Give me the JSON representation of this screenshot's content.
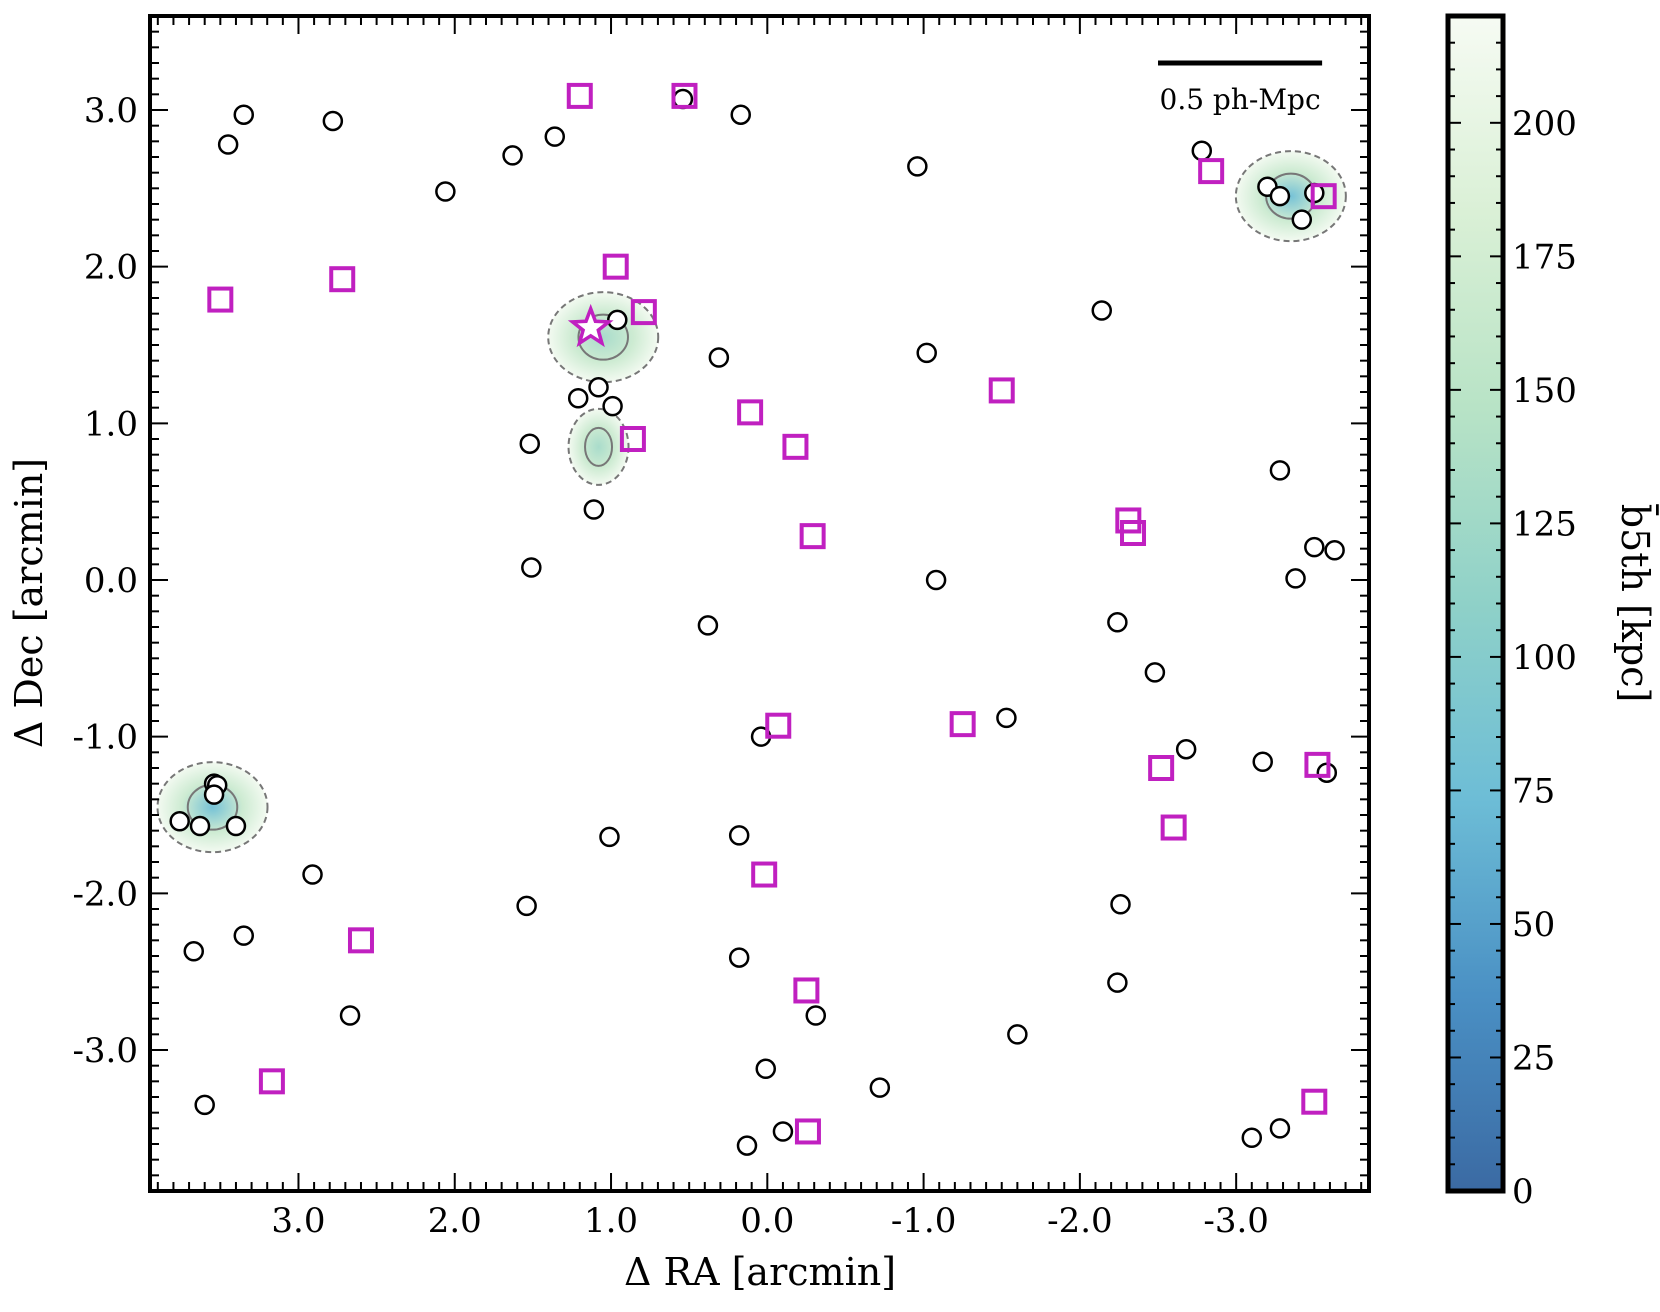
{
  "chart_data": {
    "type": "scatter",
    "xlabel": "Δ RA [arcmin]",
    "ylabel": "Δ Dec [arcmin]",
    "xlim": [
      3.95,
      -3.85
    ],
    "ylim": [
      -3.9,
      3.6
    ],
    "x_ticks": [
      {
        "value": 3.0,
        "label": "3.0"
      },
      {
        "value": 2.0,
        "label": "2.0"
      },
      {
        "value": 1.0,
        "label": "1.0"
      },
      {
        "value": 0.0,
        "label": "0.0"
      },
      {
        "value": -1.0,
        "label": "-1.0"
      },
      {
        "value": -2.0,
        "label": "-2.0"
      },
      {
        "value": -3.0,
        "label": "-3.0"
      }
    ],
    "y_ticks": [
      {
        "value": 3.0,
        "label": "3.0"
      },
      {
        "value": 2.0,
        "label": "2.0"
      },
      {
        "value": 1.0,
        "label": "1.0"
      },
      {
        "value": 0.0,
        "label": "0.0"
      },
      {
        "value": -1.0,
        "label": "-1.0"
      },
      {
        "value": -2.0,
        "label": "-2.0"
      },
      {
        "value": -3.0,
        "label": "-3.0"
      }
    ],
    "scalebar": {
      "label": "0.5 ph-Mpc",
      "ra_start": -2.5,
      "ra_end": -3.55,
      "dec": 3.3
    },
    "colorbar": {
      "label": "b̄5th [kpc]",
      "min": 0,
      "max": 220,
      "ticks": [
        {
          "value": 0,
          "label": "0"
        },
        {
          "value": 25,
          "label": "25"
        },
        {
          "value": 50,
          "label": "50"
        },
        {
          "value": 75,
          "label": "75"
        },
        {
          "value": 100,
          "label": "100"
        },
        {
          "value": 125,
          "label": "125"
        },
        {
          "value": 150,
          "label": "150"
        },
        {
          "value": 175,
          "label": "175"
        },
        {
          "value": 200,
          "label": "200"
        }
      ],
      "colors": [
        "#3b6aa3",
        "#4a90c4",
        "#6dbdd6",
        "#8fd1c8",
        "#b8e3c6",
        "#daf0d6",
        "#f6fbf3"
      ]
    },
    "density_peaks": [
      {
        "ra": 3.55,
        "dec": -1.45,
        "value": 75
      },
      {
        "ra": -3.35,
        "dec": 2.45,
        "value": 85
      },
      {
        "ra": 1.05,
        "dec": 1.55,
        "value": 130
      },
      {
        "ra": 1.08,
        "dec": 0.85,
        "value": 180
      }
    ],
    "series": [
      {
        "name": "circles",
        "marker": "circle",
        "color": "#000000",
        "points": [
          [
            3.35,
            2.97
          ],
          [
            3.45,
            2.78
          ],
          [
            2.78,
            2.93
          ],
          [
            2.06,
            2.48
          ],
          [
            1.63,
            2.71
          ],
          [
            1.36,
            2.83
          ],
          [
            0.54,
            3.07
          ],
          [
            0.17,
            2.97
          ],
          [
            -0.96,
            2.64
          ],
          [
            -2.78,
            2.74
          ],
          [
            -3.2,
            2.51
          ],
          [
            -3.28,
            2.45
          ],
          [
            -3.5,
            2.47
          ],
          [
            -3.42,
            2.3
          ],
          [
            -2.14,
            1.72
          ],
          [
            0.96,
            1.66
          ],
          [
            0.31,
            1.42
          ],
          [
            -1.02,
            1.45
          ],
          [
            1.08,
            1.23
          ],
          [
            1.21,
            1.16
          ],
          [
            0.99,
            1.11
          ],
          [
            1.52,
            0.87
          ],
          [
            1.11,
            0.45
          ],
          [
            1.51,
            0.08
          ],
          [
            -3.28,
            0.7
          ],
          [
            -3.5,
            0.21
          ],
          [
            -3.63,
            0.19
          ],
          [
            -3.38,
            0.01
          ],
          [
            -1.08,
            0.0
          ],
          [
            0.38,
            -0.29
          ],
          [
            -2.24,
            -0.27
          ],
          [
            -2.48,
            -0.59
          ],
          [
            0.04,
            -1.0
          ],
          [
            -1.53,
            -0.88
          ],
          [
            -2.68,
            -1.08
          ],
          [
            -3.17,
            -1.16
          ],
          [
            -3.58,
            -1.23
          ],
          [
            3.54,
            -1.3
          ],
          [
            3.52,
            -1.31
          ],
          [
            3.54,
            -1.37
          ],
          [
            3.76,
            -1.54
          ],
          [
            3.63,
            -1.57
          ],
          [
            3.4,
            -1.57
          ],
          [
            1.01,
            -1.64
          ],
          [
            0.18,
            -1.63
          ],
          [
            2.91,
            -1.88
          ],
          [
            1.54,
            -2.08
          ],
          [
            -2.26,
            -2.07
          ],
          [
            3.67,
            -2.37
          ],
          [
            3.35,
            -2.27
          ],
          [
            0.18,
            -2.41
          ],
          [
            -2.24,
            -2.57
          ],
          [
            2.67,
            -2.78
          ],
          [
            -0.31,
            -2.78
          ],
          [
            -1.6,
            -2.9
          ],
          [
            0.01,
            -3.12
          ],
          [
            -0.72,
            -3.24
          ],
          [
            3.6,
            -3.35
          ],
          [
            -0.1,
            -3.52
          ],
          [
            0.13,
            -3.61
          ],
          [
            -3.1,
            -3.56
          ],
          [
            -3.28,
            -3.5
          ]
        ]
      },
      {
        "name": "squares",
        "marker": "square",
        "color": "#c020c0",
        "points": [
          [
            1.2,
            3.09
          ],
          [
            0.53,
            3.09
          ],
          [
            -2.84,
            2.61
          ],
          [
            -3.56,
            2.45
          ],
          [
            3.5,
            1.79
          ],
          [
            2.72,
            1.92
          ],
          [
            0.97,
            2.0
          ],
          [
            0.79,
            1.71
          ],
          [
            -1.5,
            1.21
          ],
          [
            0.11,
            1.07
          ],
          [
            -0.18,
            0.85
          ],
          [
            0.86,
            0.9
          ],
          [
            -2.31,
            0.38
          ],
          [
            -2.34,
            0.3
          ],
          [
            -0.29,
            0.28
          ],
          [
            -0.07,
            -0.93
          ],
          [
            -1.25,
            -0.92
          ],
          [
            -2.52,
            -1.2
          ],
          [
            -3.52,
            -1.18
          ],
          [
            -2.6,
            -1.58
          ],
          [
            0.02,
            -1.88
          ],
          [
            2.6,
            -2.3
          ],
          [
            -0.25,
            -2.62
          ],
          [
            3.17,
            -3.2
          ],
          [
            -0.26,
            -3.52
          ],
          [
            -3.5,
            -3.33
          ]
        ]
      },
      {
        "name": "stars",
        "marker": "star",
        "color": "#c020c0",
        "points": [
          [
            1.13,
            1.61
          ]
        ]
      }
    ]
  }
}
